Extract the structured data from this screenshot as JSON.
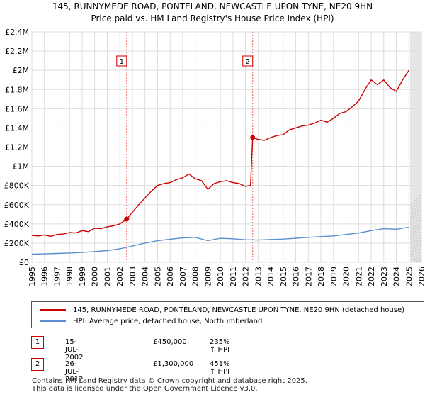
{
  "title": {
    "line1": "145, RUNNYMEDE ROAD, PONTELAND, NEWCASTLE UPON TYNE, NE20 9HN",
    "line2": "Price paid vs. HM Land Registry's House Price Index (HPI)"
  },
  "chart_data": {
    "type": "line",
    "title": "Price paid vs. HM Land Registry's House Price Index (HPI)",
    "xlabel": "",
    "ylabel": "",
    "xlim": [
      1995,
      2026
    ],
    "ylim": [
      0,
      2400000
    ],
    "grid": true,
    "x_ticks": [
      1995,
      1996,
      1997,
      1998,
      1999,
      2000,
      2001,
      2002,
      2003,
      2004,
      2005,
      2006,
      2007,
      2008,
      2009,
      2010,
      2011,
      2012,
      2013,
      2014,
      2015,
      2016,
      2017,
      2018,
      2019,
      2020,
      2021,
      2022,
      2023,
      2024,
      2025,
      2026
    ],
    "y_ticks": [
      {
        "value": 0,
        "label": "£0"
      },
      {
        "value": 200000,
        "label": "£200K"
      },
      {
        "value": 400000,
        "label": "£400K"
      },
      {
        "value": 600000,
        "label": "£600K"
      },
      {
        "value": 800000,
        "label": "£800K"
      },
      {
        "value": 1000000,
        "label": "£1M"
      },
      {
        "value": 1200000,
        "label": "£1.2M"
      },
      {
        "value": 1400000,
        "label": "£1.4M"
      },
      {
        "value": 1600000,
        "label": "£1.6M"
      },
      {
        "value": 1800000,
        "label": "£1.8M"
      },
      {
        "value": 2000000,
        "label": "£2M"
      },
      {
        "value": 2200000,
        "label": "£2.2M"
      },
      {
        "value": 2400000,
        "label": "£2.4M"
      }
    ],
    "forecast_start": 2025.1,
    "series": [
      {
        "name": "145, RUNNYMEDE ROAD, PONTELAND, NEWCASTLE UPON TYNE, NE20 9HN (detached house)",
        "color": "#cc0000",
        "x": [
          1995,
          1995.5,
          1996,
          1996.5,
          1997,
          1997.5,
          1998,
          1998.5,
          1999,
          1999.5,
          2000,
          2000.5,
          2001,
          2001.5,
          2002,
          2002.54,
          2003,
          2003.5,
          2004,
          2004.5,
          2005,
          2005.5,
          2006,
          2006.5,
          2007,
          2007.5,
          2008,
          2008.5,
          2009,
          2009.5,
          2010,
          2010.5,
          2011,
          2011.5,
          2012,
          2012.4,
          2012.57,
          2013,
          2013.5,
          2014,
          2014.5,
          2015,
          2015.5,
          2016,
          2016.5,
          2017,
          2017.5,
          2018,
          2018.5,
          2019,
          2019.5,
          2020,
          2020.5,
          2021,
          2021.5,
          2022,
          2022.5,
          2023,
          2023.5,
          2024,
          2024.5,
          2025
        ],
        "y": [
          280000,
          275000,
          285000,
          270000,
          290000,
          295000,
          310000,
          305000,
          330000,
          320000,
          355000,
          350000,
          370000,
          380000,
          400000,
          450000,
          520000,
          600000,
          670000,
          740000,
          800000,
          820000,
          830000,
          860000,
          880000,
          920000,
          870000,
          850000,
          760000,
          820000,
          840000,
          850000,
          830000,
          820000,
          790000,
          800000,
          1300000,
          1280000,
          1270000,
          1300000,
          1320000,
          1330000,
          1380000,
          1400000,
          1420000,
          1430000,
          1450000,
          1480000,
          1460000,
          1500000,
          1550000,
          1570000,
          1620000,
          1680000,
          1800000,
          1900000,
          1850000,
          1900000,
          1820000,
          1780000,
          1900000,
          2000000
        ]
      },
      {
        "name": "HPI: Average price, detached house, Northumberland",
        "color": "#5b8fd0",
        "x": [
          1995,
          1996,
          1997,
          1998,
          1999,
          2000,
          2001,
          2002,
          2003,
          2004,
          2005,
          2006,
          2007,
          2008,
          2009,
          2010,
          2011,
          2012,
          2013,
          2014,
          2015,
          2016,
          2017,
          2018,
          2019,
          2020,
          2021,
          2022,
          2023,
          2024,
          2025
        ],
        "y": [
          85000,
          88000,
          92000,
          97000,
          103000,
          112000,
          122000,
          140000,
          170000,
          200000,
          225000,
          240000,
          255000,
          260000,
          225000,
          250000,
          245000,
          235000,
          232000,
          238000,
          242000,
          250000,
          260000,
          268000,
          275000,
          290000,
          305000,
          330000,
          350000,
          345000,
          365000
        ]
      }
    ],
    "markers": [
      {
        "label": "1",
        "x": 2002.54,
        "y": 450000
      },
      {
        "label": "2",
        "x": 2012.57,
        "y": 1300000
      }
    ]
  },
  "legend": {
    "items": [
      {
        "label": "145, RUNNYMEDE ROAD, PONTELAND, NEWCASTLE UPON TYNE, NE20 9HN (detached house)",
        "color": "#cc0000"
      },
      {
        "label": "HPI: Average price, detached house, Northumberland",
        "color": "#5b8fd0"
      }
    ]
  },
  "sales": [
    {
      "num": "1",
      "date": "15-JUL-2002",
      "price": "£450,000",
      "hpi": "235% ↑ HPI"
    },
    {
      "num": "2",
      "date": "26-JUL-2012",
      "price": "£1,300,000",
      "hpi": "451% ↑ HPI"
    }
  ],
  "footer": {
    "line1": "Contains HM Land Registry data © Crown copyright and database right 2025.",
    "line2": "This data is licensed under the Open Government Licence v3.0."
  }
}
